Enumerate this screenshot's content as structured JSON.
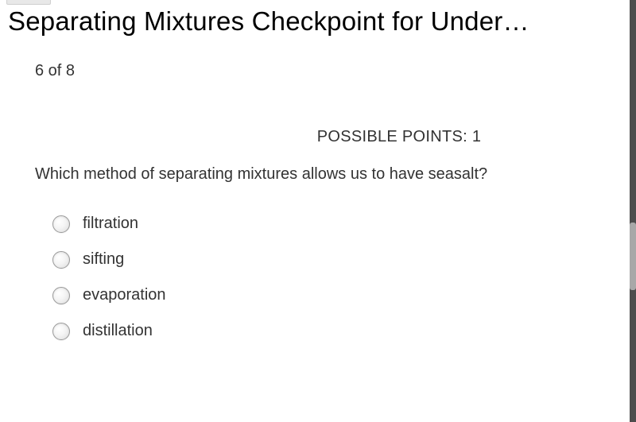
{
  "header": {
    "title": "Separating Mixtures Checkpoint for Under…"
  },
  "quiz": {
    "progress_text": "6 of 8",
    "points_label": "POSSIBLE POINTS: 1",
    "question": "Which method of separating mixtures allows us to have seasalt?",
    "options": [
      {
        "label": "filtration"
      },
      {
        "label": "sifting"
      },
      {
        "label": "evaporation"
      },
      {
        "label": "distillation"
      }
    ]
  },
  "colors": {
    "text": "#333333",
    "background": "#ffffff",
    "radio_border": "#999999",
    "scrollbar_track": "#4d4d4d",
    "scrollbar_thumb": "#a8a8a8"
  }
}
